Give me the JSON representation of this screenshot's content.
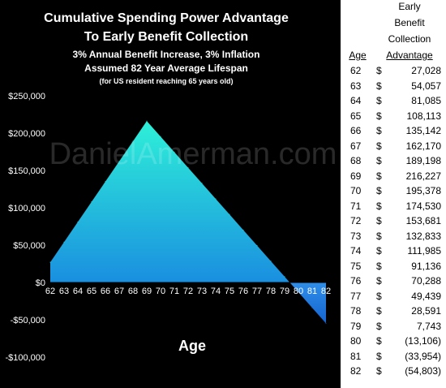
{
  "chart_title_lines": [
    "Cumulative Spending Power Advantage",
    "To Early Benefit Collection",
    "3% Annual Benefit Increase, 3% Inflation",
    "Assumed 82 Year Average Lifespan",
    "(for US resident reaching 65 years old)"
  ],
  "watermark": "DanielAmerman.com",
  "table": {
    "header_early": "Early",
    "header_benefit": "Benefit",
    "header_collection": "Collection",
    "header_age": "Age",
    "header_advantage": "Advantage",
    "rows": [
      {
        "age": "62",
        "dollar": "$",
        "value": "27,028"
      },
      {
        "age": "63",
        "dollar": "$",
        "value": "54,057"
      },
      {
        "age": "64",
        "dollar": "$",
        "value": "81,085"
      },
      {
        "age": "65",
        "dollar": "$",
        "value": "108,113"
      },
      {
        "age": "66",
        "dollar": "$",
        "value": "135,142"
      },
      {
        "age": "67",
        "dollar": "$",
        "value": "162,170"
      },
      {
        "age": "68",
        "dollar": "$",
        "value": "189,198"
      },
      {
        "age": "69",
        "dollar": "$",
        "value": "216,227"
      },
      {
        "age": "70",
        "dollar": "$",
        "value": "195,378"
      },
      {
        "age": "71",
        "dollar": "$",
        "value": "174,530"
      },
      {
        "age": "72",
        "dollar": "$",
        "value": "153,681"
      },
      {
        "age": "73",
        "dollar": "$",
        "value": "132,833"
      },
      {
        "age": "74",
        "dollar": "$",
        "value": "111,985"
      },
      {
        "age": "75",
        "dollar": "$",
        "value": "91,136"
      },
      {
        "age": "76",
        "dollar": "$",
        "value": "70,288"
      },
      {
        "age": "77",
        "dollar": "$",
        "value": "49,439"
      },
      {
        "age": "78",
        "dollar": "$",
        "value": "28,591"
      },
      {
        "age": "79",
        "dollar": "$",
        "value": "7,743"
      },
      {
        "age": "80",
        "dollar": "$",
        "value": "(13,106)"
      },
      {
        "age": "81",
        "dollar": "$",
        "value": "(33,954)"
      },
      {
        "age": "82",
        "dollar": "$",
        "value": "(54,803)"
      }
    ]
  },
  "chart_data": {
    "type": "area",
    "title": "Cumulative Spending Power Advantage To Early Benefit Collection",
    "subtitle": "3% Annual Benefit Increase, 3% Inflation; Assumed 82 Year Average Lifespan; (for US resident reaching 65 years old)",
    "xlabel": "Age",
    "ylabel": "",
    "x": [
      62,
      63,
      64,
      65,
      66,
      67,
      68,
      69,
      70,
      71,
      72,
      73,
      74,
      75,
      76,
      77,
      78,
      79,
      80,
      81,
      82
    ],
    "values": [
      27028,
      54057,
      81085,
      108113,
      135142,
      162170,
      189198,
      216227,
      195378,
      174530,
      153681,
      132833,
      111985,
      91136,
      70288,
      49439,
      28591,
      7743,
      -13106,
      -33954,
      -54803
    ],
    "ylim": [
      -100000,
      250000
    ],
    "yticks": [
      -100000,
      -50000,
      0,
      50000,
      100000,
      150000,
      200000,
      250000
    ],
    "ytick_labels": [
      "-$100,000",
      "-$50,000",
      "$0",
      "$50,000",
      "$100,000",
      "$150,000",
      "$200,000",
      "$250,000"
    ],
    "xtick_labels": [
      "62",
      "63",
      "64",
      "65",
      "66",
      "67",
      "68",
      "69",
      "70",
      "71",
      "72",
      "73",
      "74",
      "75",
      "76",
      "77",
      "78",
      "79",
      "80",
      "81",
      "82"
    ],
    "grid": false,
    "legend": "none",
    "colors": {
      "positive_top": "#2ef0d8",
      "positive_bottom": "#1a8fe0",
      "negative_top": "#2f8ee8",
      "negative_bottom": "#1464d0",
      "background": "#000000",
      "text": "#ffffff"
    }
  }
}
